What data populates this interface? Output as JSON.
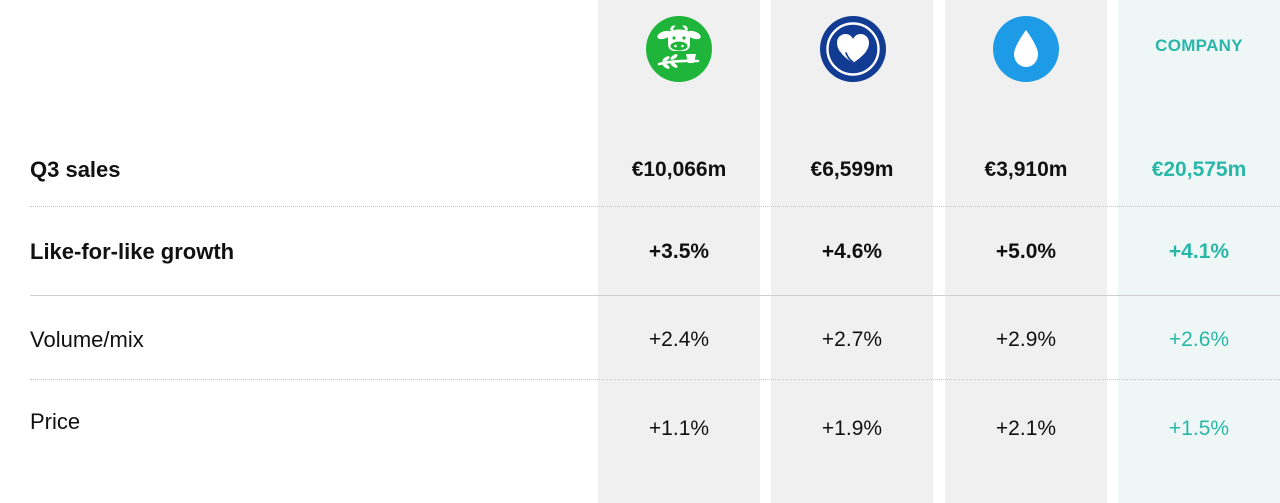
{
  "theme": {
    "accent": "#2ab7a9",
    "logo_colors": [
      "#1fb53a",
      "#123b94",
      "#1e9be6"
    ]
  },
  "columns": [
    {
      "icon": "cow-plant-icon"
    },
    {
      "icon": "heart-hands-icon"
    },
    {
      "icon": "water-drop-icon"
    },
    {
      "label": "COMPANY"
    }
  ],
  "rows": [
    {
      "label": "Q3 sales",
      "values": [
        "€10,066m",
        "€6,599m",
        "€3,910m",
        "€20,575m"
      ]
    },
    {
      "label": "Like-for-like growth",
      "values": [
        "+3.5%",
        "+4.6%",
        "+5.0%",
        "+4.1%"
      ]
    },
    {
      "label": "Volume/mix",
      "values": [
        "+2.4%",
        "+2.7%",
        "+2.9%",
        "+2.6%"
      ]
    },
    {
      "label": "Price",
      "values": [
        "+1.1%",
        "+1.9%",
        "+2.1%",
        "+1.5%"
      ]
    }
  ],
  "chart_data": {
    "type": "table",
    "columns": [
      "",
      "",
      "",
      "COMPANY"
    ],
    "rows": [
      {
        "label": "Q3 sales",
        "values": [
          "€10,066m",
          "€6,599m",
          "€3,910m",
          "€20,575m"
        ]
      },
      {
        "label": "Like-for-like growth",
        "values": [
          "+3.5%",
          "+4.6%",
          "+5.0%",
          "+4.1%"
        ]
      },
      {
        "label": "Volume/mix",
        "values": [
          "+2.4%",
          "+2.7%",
          "+2.9%",
          "+2.6%"
        ]
      },
      {
        "label": "Price",
        "values": [
          "+1.1%",
          "+1.9%",
          "+2.1%",
          "+1.5%"
        ]
      }
    ]
  }
}
